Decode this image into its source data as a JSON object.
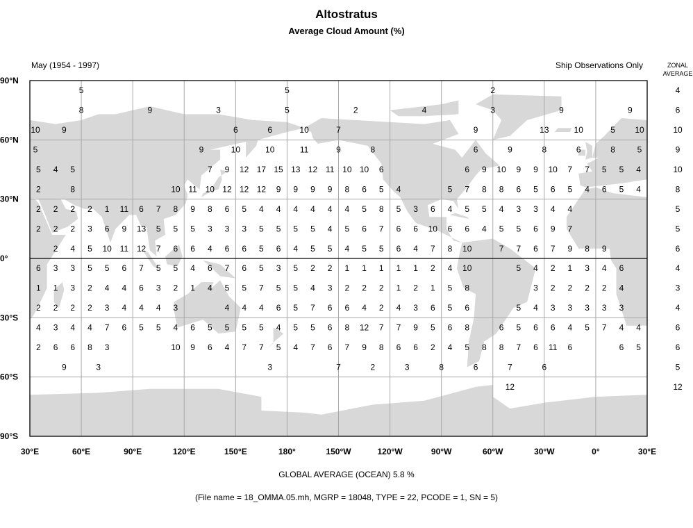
{
  "header": {
    "title": "Altostratus",
    "subtitle": "Average Cloud Amount (%)",
    "period": "May (1954 - 1997)",
    "note": "Ship Observations Only",
    "zonal_heading_1": "ZONAL",
    "zonal_heading_2": "AVERAGE"
  },
  "footer": {
    "global_average": "GLOBAL AVERAGE (OCEAN)   5.8 %",
    "file_info": "(File name = 18_OMMA.05.mh, MGRP = 18048, TYPE = 22, PCODE = 1, SN = 5)"
  },
  "colors": {
    "land": "#d8d8d8",
    "grid": "#a8a8a8",
    "equator": "#000000"
  },
  "chart_data": {
    "type": "table",
    "map_projection": "equirectangular",
    "lon_range": [
      30,
      390
    ],
    "lat_range": [
      -90,
      90
    ],
    "lat_ticks": [
      "90°N",
      "60°N",
      "30°N",
      "0°",
      "30°S",
      "60°S",
      "90°S"
    ],
    "lon_ticks": [
      "30°E",
      "60°E",
      "90°E",
      "120°E",
      "150°E",
      "180°",
      "150°W",
      "120°W",
      "90°W",
      "60°W",
      "30°W",
      "0°",
      "30°E"
    ],
    "grid_values_first_lon": 35,
    "grid_values_lon_step": 10,
    "rows": [
      {
        "lat": 85,
        "zonal": "4",
        "points": [
          [
            60,
            5
          ],
          [
            180,
            5
          ],
          [
            -60,
            2
          ]
        ]
      },
      {
        "lat": 75,
        "zonal": "6",
        "points": [
          [
            60,
            8
          ],
          [
            100,
            9
          ],
          [
            140,
            3
          ],
          [
            180,
            5
          ],
          [
            -140,
            2
          ],
          [
            -100,
            4
          ],
          [
            -60,
            3
          ],
          [
            -20,
            9
          ],
          [
            20,
            9
          ]
        ]
      },
      {
        "lat": 65,
        "zonal": "10",
        "points": [
          [
            30,
            10
          ],
          [
            50,
            9
          ],
          [
            150,
            6
          ],
          [
            170,
            6
          ],
          [
            -170,
            10
          ],
          [
            -150,
            7
          ],
          [
            -70,
            9
          ],
          [
            -30,
            13
          ],
          [
            -10,
            10
          ],
          [
            10,
            5
          ],
          [
            30,
            10
          ]
        ]
      },
      {
        "lat": 55,
        "zonal": "9",
        "points": [
          [
            30,
            5
          ],
          [
            130,
            9
          ],
          [
            150,
            10
          ],
          [
            170,
            10
          ],
          [
            -170,
            11
          ],
          [
            -150,
            9
          ],
          [
            -130,
            8
          ],
          [
            -70,
            6
          ],
          [
            -50,
            9
          ],
          [
            -30,
            8
          ],
          [
            -10,
            6
          ],
          [
            10,
            8
          ],
          [
            30,
            5
          ]
        ]
      },
      {
        "lat": 45,
        "zonal": "10",
        "values": [
          5,
          4,
          5,
          null,
          null,
          null,
          null,
          null,
          null,
          null,
          7,
          9,
          12,
          17,
          15,
          13,
          12,
          11,
          10,
          10,
          6,
          null,
          null,
          null,
          null,
          6,
          9,
          10,
          9,
          9,
          10,
          7,
          7,
          5,
          5,
          4
        ]
      },
      {
        "lat": 35,
        "zonal": "8",
        "values": [
          2,
          null,
          8,
          null,
          null,
          null,
          null,
          null,
          10,
          11,
          10,
          12,
          12,
          12,
          9,
          9,
          9,
          9,
          8,
          6,
          5,
          4,
          null,
          null,
          5,
          7,
          8,
          8,
          6,
          5,
          6,
          5,
          4,
          6,
          5,
          4
        ]
      },
      {
        "lat": 25,
        "zonal": "5",
        "values": [
          2,
          2,
          2,
          2,
          1,
          11,
          6,
          7,
          8,
          9,
          8,
          6,
          5,
          4,
          4,
          4,
          4,
          4,
          4,
          5,
          8,
          5,
          3,
          6,
          4,
          5,
          5,
          4,
          3,
          3,
          4,
          4,
          null,
          null,
          null,
          null
        ]
      },
      {
        "lat": 15,
        "zonal": "5",
        "values": [
          2,
          2,
          2,
          3,
          6,
          9,
          13,
          5,
          5,
          5,
          3,
          3,
          3,
          5,
          5,
          5,
          5,
          4,
          5,
          6,
          7,
          6,
          6,
          10,
          6,
          6,
          4,
          5,
          5,
          6,
          9,
          7,
          null,
          null,
          null,
          null
        ]
      },
      {
        "lat": 5,
        "zonal": "6",
        "values": [
          null,
          2,
          4,
          5,
          10,
          11,
          12,
          7,
          6,
          6,
          4,
          6,
          6,
          5,
          6,
          4,
          5,
          5,
          4,
          5,
          5,
          6,
          4,
          7,
          8,
          10,
          null,
          7,
          7,
          6,
          7,
          9,
          8,
          9,
          null,
          null
        ]
      },
      {
        "lat": -5,
        "zonal": "4",
        "values": [
          6,
          3,
          3,
          5,
          5,
          6,
          7,
          5,
          5,
          4,
          6,
          7,
          6,
          5,
          3,
          5,
          2,
          2,
          1,
          1,
          1,
          1,
          1,
          2,
          4,
          10,
          null,
          null,
          5,
          4,
          2,
          1,
          3,
          4,
          6,
          null
        ]
      },
      {
        "lat": -15,
        "zonal": "3",
        "values": [
          1,
          1,
          3,
          2,
          4,
          4,
          6,
          3,
          2,
          1,
          4,
          5,
          5,
          7,
          5,
          5,
          4,
          3,
          2,
          2,
          2,
          1,
          2,
          1,
          5,
          8,
          null,
          null,
          null,
          3,
          2,
          2,
          2,
          2,
          4,
          null
        ]
      },
      {
        "lat": -25,
        "zonal": "4",
        "values": [
          2,
          2,
          2,
          2,
          3,
          4,
          4,
          4,
          3,
          null,
          null,
          4,
          4,
          4,
          6,
          5,
          7,
          6,
          6,
          4,
          2,
          4,
          3,
          6,
          5,
          6,
          null,
          null,
          5,
          4,
          3,
          3,
          3,
          3,
          3,
          null
        ]
      },
      {
        "lat": -35,
        "zonal": "6",
        "values": [
          4,
          3,
          4,
          4,
          7,
          6,
          5,
          5,
          4,
          6,
          5,
          5,
          5,
          5,
          4,
          5,
          5,
          6,
          8,
          12,
          7,
          7,
          9,
          5,
          6,
          8,
          null,
          6,
          5,
          6,
          6,
          4,
          5,
          7,
          4,
          4
        ]
      },
      {
        "lat": -45,
        "zonal": "6",
        "values": [
          2,
          6,
          6,
          8,
          3,
          null,
          null,
          null,
          10,
          9,
          6,
          4,
          7,
          7,
          5,
          4,
          7,
          6,
          7,
          9,
          8,
          6,
          6,
          2,
          4,
          5,
          8,
          8,
          7,
          6,
          11,
          6,
          null,
          null,
          6,
          5
        ]
      },
      {
        "lat": -55,
        "zonal": "5",
        "points": [
          [
            50,
            9
          ],
          [
            70,
            3
          ],
          [
            170,
            3
          ],
          [
            -150,
            7
          ],
          [
            -130,
            2
          ],
          [
            -110,
            3
          ],
          [
            -90,
            8
          ],
          [
            -70,
            6
          ],
          [
            -50,
            7
          ],
          [
            -30,
            6
          ]
        ]
      },
      {
        "lat": -65,
        "zonal": "12",
        "points": [
          [
            -50,
            12
          ]
        ]
      },
      {
        "lat": -75,
        "zonal": "",
        "points": []
      },
      {
        "lat": -85,
        "zonal": "",
        "points": []
      }
    ]
  }
}
